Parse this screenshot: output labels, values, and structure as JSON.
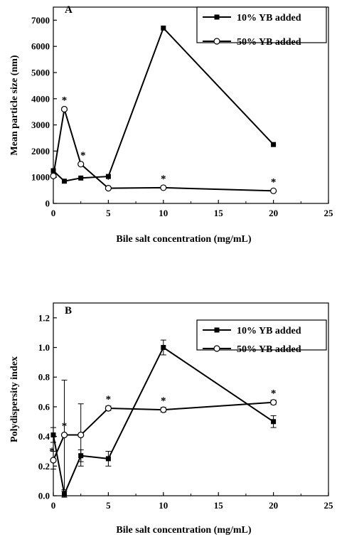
{
  "chart_data": [
    {
      "type": "line",
      "panel_label": "A",
      "xlabel": "Bile salt concentration (mg/mL)",
      "ylabel": "Mean particle size (nm)",
      "xlim": [
        0,
        25
      ],
      "ylim": [
        0,
        7500
      ],
      "xticks": [
        0,
        5,
        10,
        15,
        20,
        25
      ],
      "yticks": [
        0,
        1000,
        2000,
        3000,
        4000,
        5000,
        6000,
        7000
      ],
      "legend_position": "top-right",
      "grid": false,
      "series": [
        {
          "name": "10% YB added",
          "marker": "filled-square",
          "x": [
            0,
            1,
            2.5,
            5,
            10,
            20
          ],
          "y": [
            1250,
            850,
            970,
            1030,
            6700,
            2250
          ],
          "err": [
            0,
            0,
            0,
            0,
            0,
            0
          ]
        },
        {
          "name": "50% YB added",
          "marker": "open-circle",
          "x": [
            0,
            1,
            2.5,
            5,
            10,
            20
          ],
          "y": [
            1050,
            3600,
            1500,
            580,
            600,
            480
          ],
          "err": [
            0,
            0,
            0,
            0,
            0,
            0
          ]
        }
      ],
      "annotations": [
        {
          "text": "*",
          "x": 1,
          "y": 3600
        },
        {
          "text": "*",
          "x": 2.5,
          "y": 1500
        },
        {
          "text": "*",
          "x": 5,
          "y": 580
        },
        {
          "text": "*",
          "x": 10,
          "y": 600
        },
        {
          "text": "*",
          "x": 20,
          "y": 480
        }
      ]
    },
    {
      "type": "line",
      "panel_label": "B",
      "xlabel": "Bile salt concentration (mg/mL)",
      "ylabel": "Polydispersity index",
      "xlim": [
        0,
        25
      ],
      "ylim": [
        0,
        1.3
      ],
      "xticks": [
        0,
        5,
        10,
        15,
        20,
        25
      ],
      "yticks": [
        0.0,
        0.2,
        0.4,
        0.6,
        0.8,
        1.0,
        1.2
      ],
      "legend_position": "top-right",
      "grid": false,
      "series": [
        {
          "name": "10% YB added",
          "marker": "filled-square",
          "x": [
            0,
            1,
            2.5,
            5,
            10,
            20
          ],
          "y": [
            0.41,
            0.01,
            0.27,
            0.25,
            1.0,
            0.5
          ],
          "err": [
            0.05,
            0.02,
            0.04,
            0.05,
            0.05,
            0.04
          ]
        },
        {
          "name": "50% YB added",
          "marker": "open-circle",
          "x": [
            0,
            1,
            2.5,
            5,
            10,
            20
          ],
          "y": [
            0.24,
            0.41,
            0.41,
            0.59,
            0.58,
            0.63
          ],
          "err": [
            0.06,
            0.37,
            0.21,
            0.015,
            0.015,
            0.015
          ]
        }
      ],
      "annotations": [
        {
          "text": "*",
          "x": 0,
          "y": 0.24
        },
        {
          "text": "*",
          "x": 1,
          "y": 0.41
        },
        {
          "text": "*",
          "x": 5,
          "y": 0.59
        },
        {
          "text": "*",
          "x": 10,
          "y": 0.58
        },
        {
          "text": "*",
          "x": 20,
          "y": 0.63
        }
      ]
    }
  ]
}
